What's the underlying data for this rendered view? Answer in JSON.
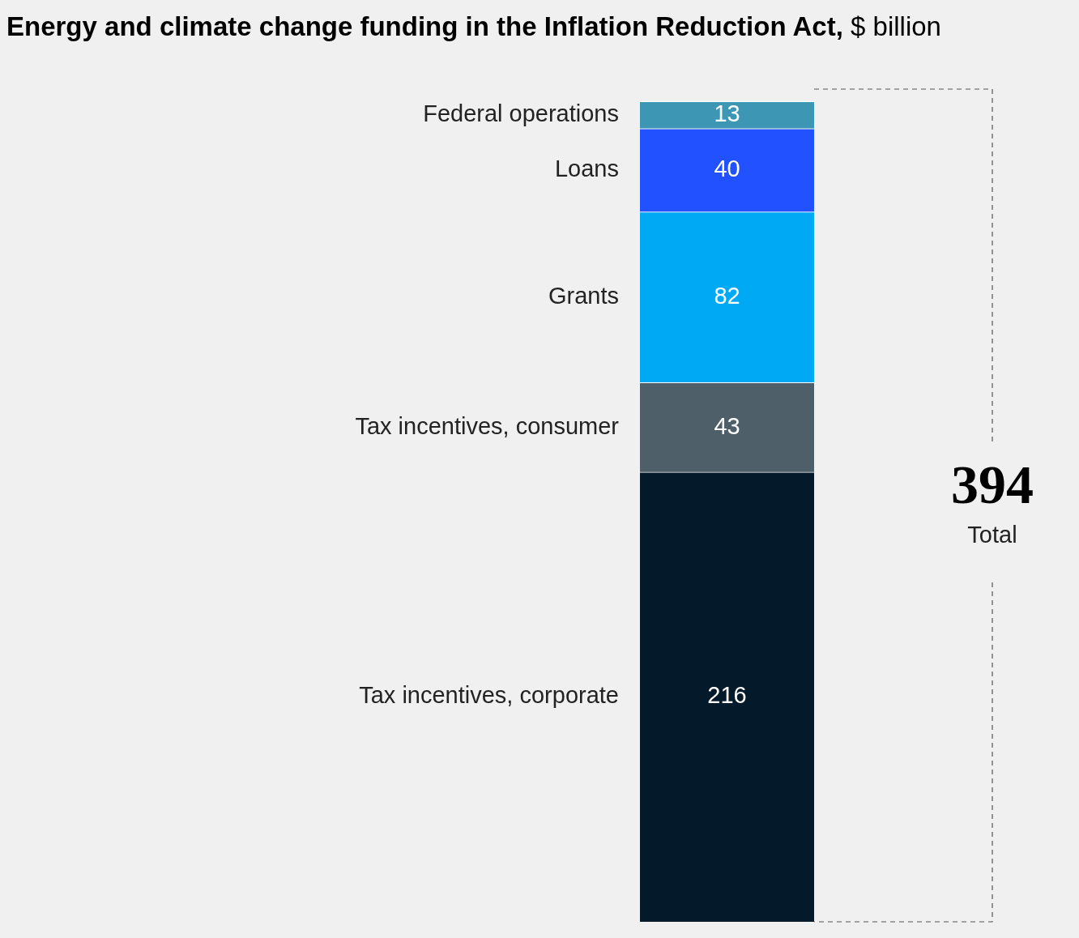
{
  "chart_data": {
    "type": "bar",
    "title": "Energy and climate change funding in the Inflation Reduction Act,",
    "subtitle": "$ billion",
    "stacked": true,
    "categories": [
      null
    ],
    "series": [
      {
        "name": "Tax incentives, corporate",
        "color": "#041a2a",
        "values": [
          216
        ]
      },
      {
        "name": "Tax incentives, consumer",
        "color": "#4f5f6a",
        "values": [
          43
        ]
      },
      {
        "name": "Grants",
        "color": "#00a9f4",
        "values": [
          82
        ]
      },
      {
        "name": "Loans",
        "color": "#2251ff",
        "values": [
          40
        ]
      },
      {
        "name": "Federal operations",
        "color": "#3c96b4",
        "values": [
          13
        ]
      }
    ],
    "data_labels": true,
    "totals": [
      "394"
    ],
    "annotations": [
      "Total"
    ],
    "legend": false
  }
}
